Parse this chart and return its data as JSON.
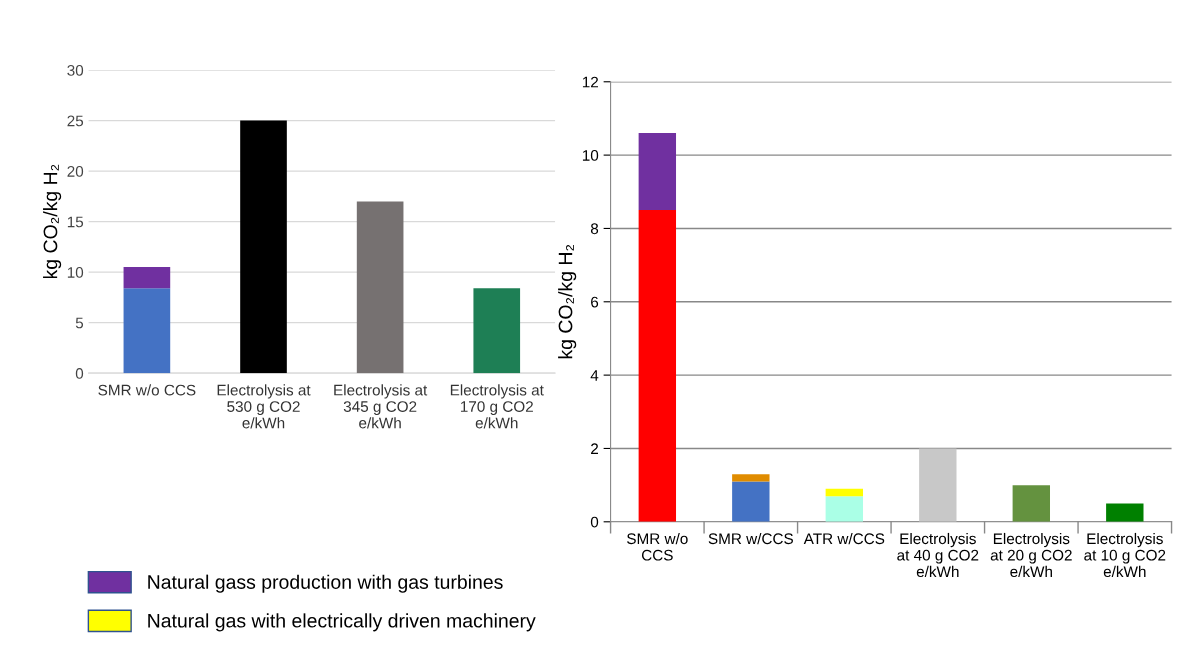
{
  "chart_data": [
    {
      "type": "bar",
      "stacked": true,
      "ylabel": "kg CO₂/kg H₂",
      "categories": [
        "SMR w/o CCS",
        "Electrolysis at\n530 g CO2\ne/kWh",
        "Electrolysis at\n345 g CO2\ne/kWh",
        "Electrolysis at\n170 g CO2\ne/kWh"
      ],
      "ylim": [
        0,
        30
      ],
      "yticks": [
        0,
        5,
        10,
        15,
        20,
        25,
        30
      ],
      "grid": "y",
      "series": [
        {
          "colors": [
            "#4472c4",
            "#000000",
            "#767171",
            "#1e7f55"
          ],
          "values": [
            8.4,
            25,
            17,
            8.4
          ]
        },
        {
          "color": "#7030a0",
          "values": [
            2.1,
            null,
            null,
            null
          ]
        }
      ]
    },
    {
      "type": "bar",
      "stacked": true,
      "ylabel": "kg CO₂/kg H₂",
      "categories": [
        "SMR w/o\nCCS",
        "SMR w/CCS",
        "ATR w/CCS",
        "Electrolysis\nat 40 g CO2\ne/kWh",
        "Electrolysis\nat 20 g CO2\ne/kWh",
        "Electrolysis\nat 10 g CO2\ne/kWh"
      ],
      "ylim": [
        0,
        12
      ],
      "yticks": [
        0,
        2,
        4,
        6,
        8,
        10,
        12
      ],
      "grid": "y",
      "legend": "bottom left",
      "series": [
        {
          "colors": [
            "#ff0000",
            "#4472c4",
            "#aaffe6",
            "#c8c8c8",
            "#64923f",
            "#008000"
          ],
          "values": [
            8.5,
            1.1,
            0.7,
            2.0,
            1.0,
            0.5
          ]
        },
        {
          "name": "Natural gass production with gas turbines",
          "color": "#7030a0",
          "values": [
            2.1,
            null,
            null,
            null,
            null,
            null
          ]
        },
        {
          "color": "#e08c00",
          "values": [
            null,
            0.2,
            null,
            null,
            null,
            null
          ]
        },
        {
          "name": "Natural gas with electrically driven machinery",
          "color": "#ffff00",
          "values": [
            null,
            null,
            0.2,
            null,
            null,
            null
          ]
        }
      ]
    }
  ]
}
